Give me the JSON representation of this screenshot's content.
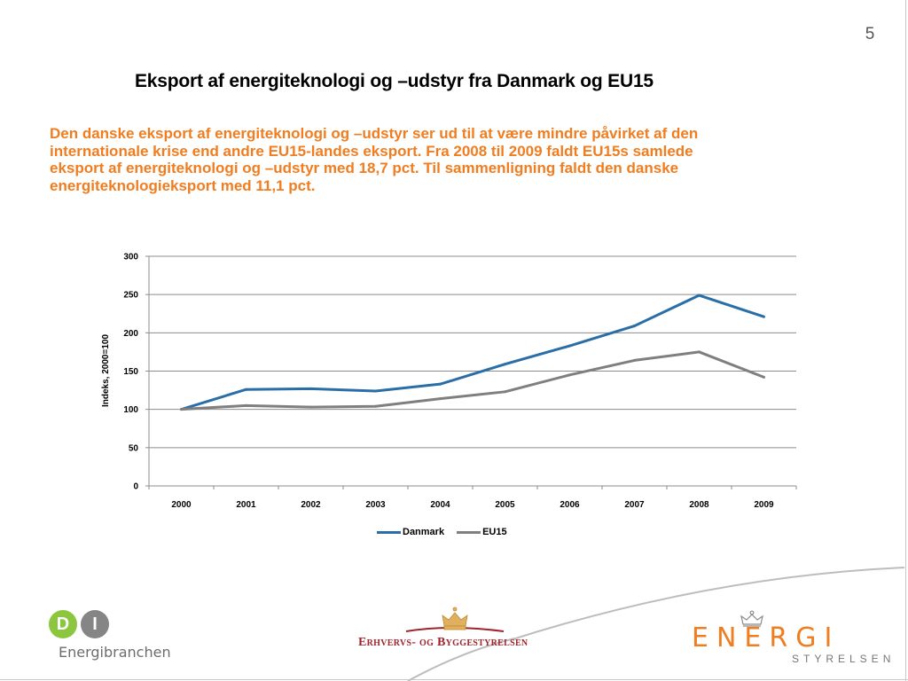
{
  "page_number": "5",
  "title": "Eksport af energiteknologi og –udstyr fra Danmark og EU15",
  "summary_lines": [
    "Den danske eksport af energiteknologi og –udstyr ser ud til at være mindre påvirket af den",
    "internationale krise end andre EU15-landes eksport. Fra 2008 til 2009 faldt EU15s samlede",
    "eksport af energiteknologi og –udstyr med 18,7 pct. Til sammenligning faldt den danske",
    "energiteknologieksport med 11,1 pct."
  ],
  "chart_data": {
    "type": "line",
    "title": "",
    "xlabel": "",
    "ylabel": "Indeks, 2000=100",
    "categories": [
      "2000",
      "2001",
      "2002",
      "2003",
      "2004",
      "2005",
      "2006",
      "2007",
      "2008",
      "2009"
    ],
    "ylim": [
      0,
      300
    ],
    "yticks": [
      0,
      50,
      100,
      150,
      200,
      250,
      300
    ],
    "grid": true,
    "legend_position": "bottom",
    "series": [
      {
        "name": "Danmark",
        "color": "#2a6ea8",
        "values": [
          100,
          126,
          127,
          124,
          133,
          159,
          183,
          209,
          249,
          221
        ]
      },
      {
        "name": "EU15",
        "color": "#7f7f7f",
        "values": [
          100,
          105,
          103,
          104,
          114,
          123,
          145,
          164,
          175,
          142
        ]
      }
    ]
  },
  "logos": {
    "di": {
      "letters": [
        "D",
        "I"
      ],
      "text": "Energibranchen",
      "colors": [
        "#8cc63f",
        "#858585"
      ]
    },
    "ebst": {
      "text": "Erhvervs- og Byggestyrelsen",
      "color": "#a0232d"
    },
    "ens": {
      "main": "ENERGI",
      "sub": "STYRELSEN",
      "color": "#f07d20"
    }
  }
}
